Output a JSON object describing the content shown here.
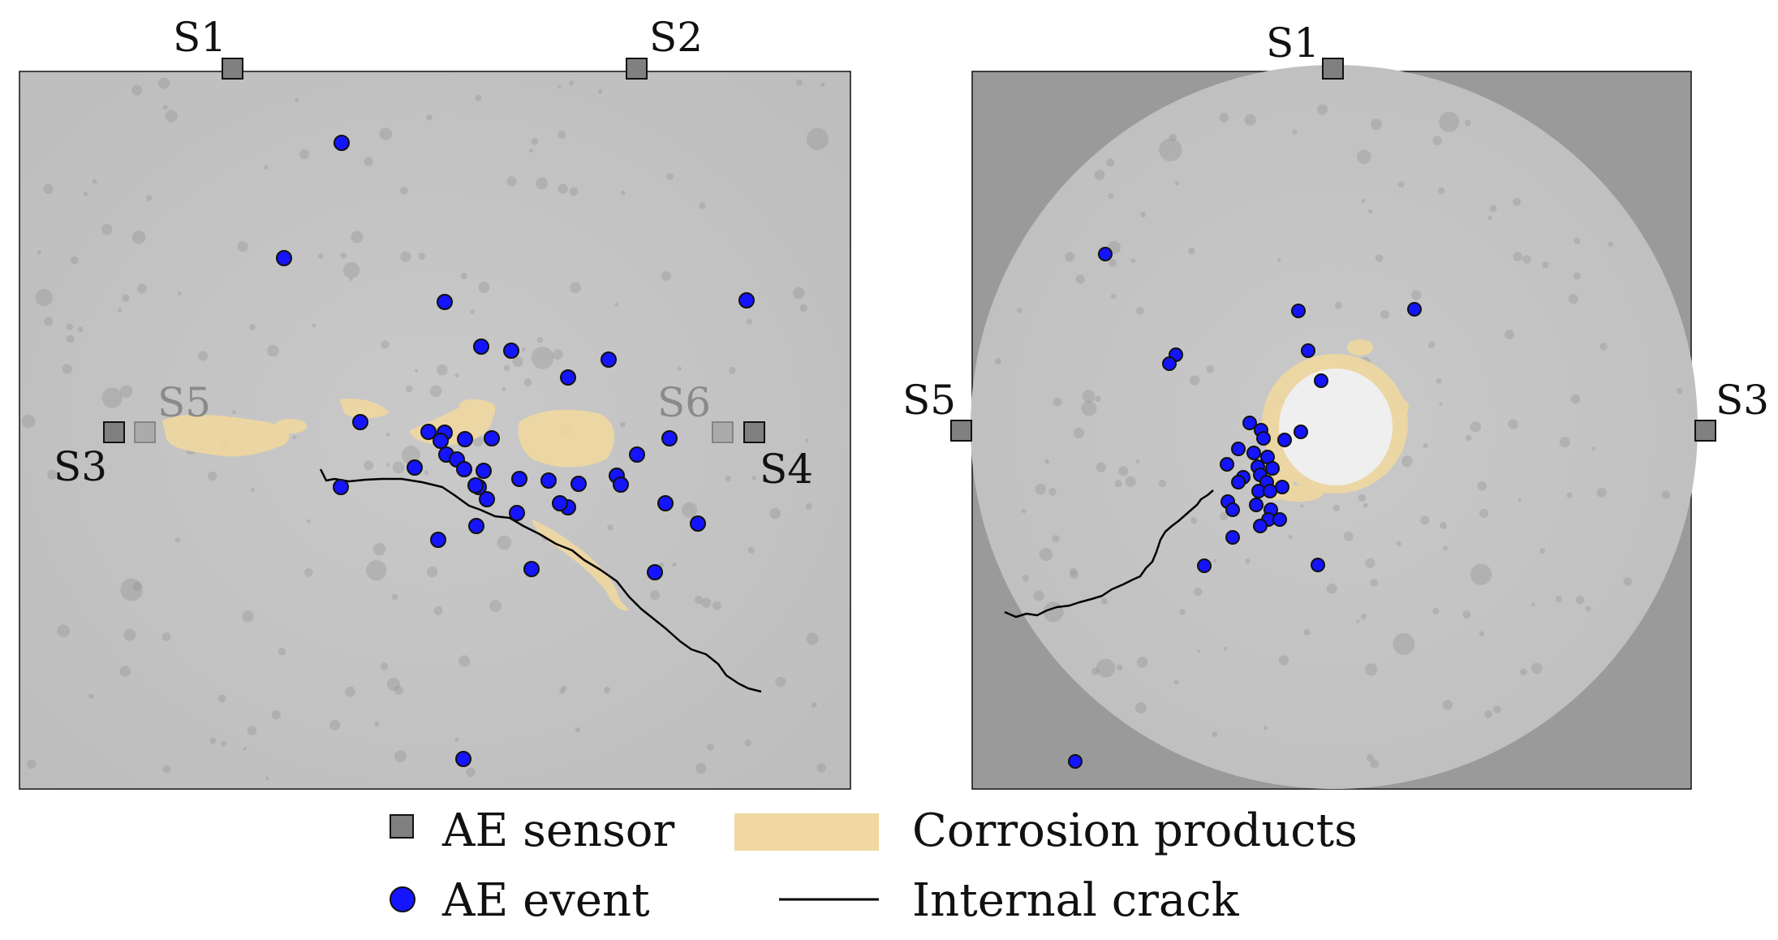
{
  "left_panel": {
    "sensor_labels": {
      "s1": "S1",
      "s2": "S2",
      "s3": "S3",
      "s4": "S4",
      "s5": "S5",
      "s6": "S6"
    },
    "ae_event_count": 40
  },
  "right_panel": {
    "sensor_labels": {
      "s1": "S1",
      "s5": "S5",
      "s3": "S3"
    },
    "ae_event_count": 35
  },
  "legend": {
    "ae_sensor": "AE sensor",
    "ae_event": "AE event",
    "corrosion_products": "Corrosion products",
    "internal_crack": "Internal crack"
  },
  "colors": {
    "concrete": "#c6c6c6",
    "background_right": "#9a9a9a",
    "ae_event": "#1414c8",
    "corrosion": "#f0d8a0",
    "sensor": "#808080",
    "crack": "#000000",
    "rebar_hole": "#efefef"
  }
}
